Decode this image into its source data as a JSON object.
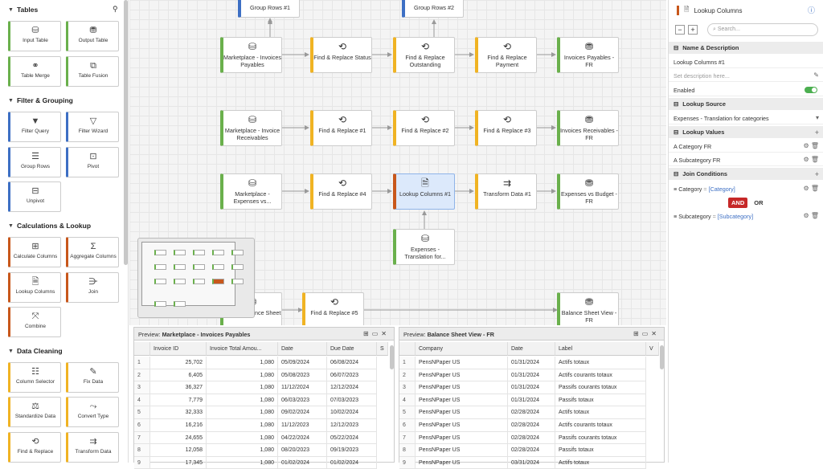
{
  "sidebar": {
    "sections": [
      {
        "title": "Tables",
        "tools": [
          {
            "label": "Input Table",
            "icon": "database-icon",
            "color": "green"
          },
          {
            "label": "Output Table",
            "icon": "database-stack-icon",
            "color": "green"
          },
          {
            "label": "Table Merge",
            "icon": "merge-icon",
            "color": "green"
          },
          {
            "label": "Table Fusion",
            "icon": "fusion-icon",
            "color": "green"
          }
        ]
      },
      {
        "title": "Filter & Grouping",
        "tools": [
          {
            "label": "Filter Query",
            "icon": "filter-icon",
            "color": "blue"
          },
          {
            "label": "Filter Wizard",
            "icon": "filter-wizard-icon",
            "color": "blue"
          },
          {
            "label": "Group Rows",
            "icon": "group-rows-icon",
            "color": "blue"
          },
          {
            "label": "Pivot",
            "icon": "pivot-icon",
            "color": "blue"
          },
          {
            "label": "Unpivot",
            "icon": "unpivot-icon",
            "color": "blue"
          }
        ]
      },
      {
        "title": "Calculations & Lookup",
        "tools": [
          {
            "label": "Calculate Columns",
            "icon": "calculate-icon",
            "color": "orange"
          },
          {
            "label": "Aggregate Columns",
            "icon": "sigma-icon",
            "color": "orange"
          },
          {
            "label": "Lookup Columns",
            "icon": "lookup-icon",
            "color": "orange"
          },
          {
            "label": "Join",
            "icon": "join-icon",
            "color": "orange"
          },
          {
            "label": "Combine",
            "icon": "combine-icon",
            "color": "orange"
          }
        ]
      },
      {
        "title": "Data Cleaning",
        "tools": [
          {
            "label": "Column Selector",
            "icon": "column-selector-icon",
            "color": "yellow"
          },
          {
            "label": "Fix Data",
            "icon": "fix-data-icon",
            "color": "yellow"
          },
          {
            "label": "Standardize Data",
            "icon": "standardize-icon",
            "color": "yellow"
          },
          {
            "label": "Convert Type",
            "icon": "convert-icon",
            "color": "yellow"
          },
          {
            "label": "Find & Replace",
            "icon": "find-replace-icon",
            "color": "yellow"
          },
          {
            "label": "Transform Data",
            "icon": "transform-icon",
            "color": "yellow"
          }
        ]
      }
    ]
  },
  "canvas": {
    "nodes": [
      {
        "label": "Group Rows #1",
        "icon": "",
        "color": "blue"
      },
      {
        "label": "Group Rows #2",
        "icon": "",
        "color": "blue"
      },
      {
        "label": "Marketplace - Invoices Payables",
        "icon": "database-icon",
        "color": "green"
      },
      {
        "label": "Find & Replace Status",
        "icon": "find-replace-icon",
        "color": "yellow"
      },
      {
        "label": "Find & Replace Outstanding",
        "icon": "find-replace-icon",
        "color": "yellow"
      },
      {
        "label": "Find & Replace Payment",
        "icon": "find-replace-icon",
        "color": "yellow"
      },
      {
        "label": "Invoices Payables - FR",
        "icon": "database-stack-icon",
        "color": "green"
      },
      {
        "label": "Marketplace - Invoice Receivables",
        "icon": "database-icon",
        "color": "green"
      },
      {
        "label": "Find & Replace #1",
        "icon": "find-replace-icon",
        "color": "yellow"
      },
      {
        "label": "Find & Replace #2",
        "icon": "find-replace-icon",
        "color": "yellow"
      },
      {
        "label": "Find & Replace #3",
        "icon": "find-replace-icon",
        "color": "yellow"
      },
      {
        "label": "Invoices Receivables - FR",
        "icon": "database-stack-icon",
        "color": "green"
      },
      {
        "label": "Marketplace - Expenses vs...",
        "icon": "database-icon",
        "color": "green"
      },
      {
        "label": "Find & Replace #4",
        "icon": "find-replace-icon",
        "color": "yellow"
      },
      {
        "label": "Lookup Columns #1",
        "icon": "lookup-icon",
        "color": "orange"
      },
      {
        "label": "Transform Data #1",
        "icon": "transform-icon",
        "color": "yellow"
      },
      {
        "label": "Expenses vs Budget - FR",
        "icon": "database-stack-icon",
        "color": "green"
      },
      {
        "label": "Expenses - Translation for...",
        "icon": "database-icon",
        "color": "green"
      },
      {
        "label": "...ace - Balance Sheet",
        "icon": "database-icon",
        "color": "green"
      },
      {
        "label": "Find & Replace #5",
        "icon": "find-replace-icon",
        "color": "yellow"
      },
      {
        "label": "Balance Sheet View - FR",
        "icon": "database-stack-icon",
        "color": "green"
      }
    ]
  },
  "panel": {
    "title": "Lookup Columns",
    "search_placeholder": "Search...",
    "name_section": "Name & Description",
    "name_value": "Lookup Columns #1",
    "description_placeholder": "Set description here...",
    "enabled_label": "Enabled",
    "enabled": true,
    "source_section": "Lookup Source",
    "source_value": "Expenses - Translation for categories",
    "values_section": "Lookup Values",
    "values": [
      "Category FR",
      "Subcategory FR"
    ],
    "join_section": "Join Conditions",
    "conditions": [
      {
        "left": "Category",
        "op": "=",
        "right": "[Category]"
      },
      {
        "left": "Subcategory",
        "op": "=",
        "right": "[Subcategory]"
      }
    ],
    "and_label": "AND",
    "or_label": "OR"
  },
  "preview_left": {
    "title_prefix": "Preview:",
    "title": "Marketplace - Invoices Payables",
    "columns": [
      "",
      "Invoice ID",
      "Invoice Total Amou...",
      "Date",
      "Due Date",
      "S"
    ],
    "rows": [
      [
        "1",
        "25,702",
        "1,080",
        "05/09/2024",
        "06/08/2024"
      ],
      [
        "2",
        "6,405",
        "1,080",
        "05/08/2023",
        "06/07/2023"
      ],
      [
        "3",
        "36,327",
        "1,080",
        "11/12/2024",
        "12/12/2024"
      ],
      [
        "4",
        "7,779",
        "1,080",
        "06/03/2023",
        "07/03/2023"
      ],
      [
        "5",
        "32,333",
        "1,080",
        "09/02/2024",
        "10/02/2024"
      ],
      [
        "6",
        "16,216",
        "1,080",
        "11/12/2023",
        "12/12/2023"
      ],
      [
        "7",
        "24,655",
        "1,080",
        "04/22/2024",
        "05/22/2024"
      ],
      [
        "8",
        "12,058",
        "1,080",
        "08/20/2023",
        "09/19/2023"
      ],
      [
        "9",
        "17,345",
        "1,080",
        "01/02/2024",
        "01/02/2024"
      ]
    ]
  },
  "preview_right": {
    "title_prefix": "Preview:",
    "title": "Balance Sheet View - FR",
    "columns": [
      "",
      "Company",
      "Date",
      "Label",
      "V"
    ],
    "rows": [
      [
        "1",
        "PensNPaper US",
        "01/31/2024",
        "Actifs totaux"
      ],
      [
        "2",
        "PensNPaper US",
        "01/31/2024",
        "Actifs courants totaux"
      ],
      [
        "3",
        "PensNPaper US",
        "01/31/2024",
        "Passifs courants totaux"
      ],
      [
        "4",
        "PensNPaper US",
        "01/31/2024",
        "Passifs totaux"
      ],
      [
        "5",
        "PensNPaper US",
        "02/28/2024",
        "Actifs totaux"
      ],
      [
        "6",
        "PensNPaper US",
        "02/28/2024",
        "Actifs courants totaux"
      ],
      [
        "7",
        "PensNPaper US",
        "02/28/2024",
        "Passifs courants totaux"
      ],
      [
        "8",
        "PensNPaper US",
        "02/28/2024",
        "Passifs totaux"
      ],
      [
        "9",
        "PensNPaper US",
        "03/31/2024",
        "Actifs totaux"
      ]
    ]
  },
  "colors": {
    "green": "#6ab04c",
    "blue": "#3d6fc4",
    "orange": "#c8571b",
    "yellow": "#f0b323",
    "selected": "#dce9fb"
  }
}
